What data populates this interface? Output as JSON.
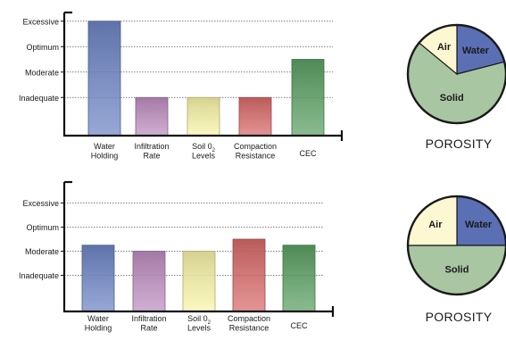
{
  "chart_data": [
    {
      "type": "bar",
      "title": "",
      "xlabel": "",
      "ylabel": "",
      "y_levels": [
        "Inadequate",
        "Moderate",
        "Optimum",
        "Excessive"
      ],
      "ylim": [
        0,
        5
      ],
      "grid": "dotted horizontal",
      "categories": [
        {
          "line1": "Water",
          "line2": "Holding"
        },
        {
          "line1": "Infiltration",
          "line2": "Rate"
        },
        {
          "line1": "Soil 0",
          "sub": "2",
          "line2": "Levels"
        },
        {
          "line1": "Compaction",
          "line2": "Resistance"
        },
        {
          "line1": "CEC",
          "line2": ""
        }
      ],
      "values": [
        4.5,
        1.5,
        1.5,
        1.5,
        3.0
      ],
      "colors": [
        "#6f86c6",
        "#bd8ec0",
        "#f8f4a8",
        "#d86a6a",
        "#5ca064"
      ],
      "pie": {
        "type": "pie",
        "caption": "POROSITY",
        "slices": [
          {
            "label": "Water",
            "fraction": 0.21,
            "color": "#5b6fb5"
          },
          {
            "label": "Solid",
            "fraction": 0.65,
            "color": "#a9c6a3"
          },
          {
            "label": "Air",
            "fraction": 0.14,
            "color": "#fdf8d2"
          }
        ]
      }
    },
    {
      "type": "bar",
      "title": "",
      "xlabel": "",
      "ylabel": "",
      "y_levels": [
        "Inadequate",
        "Moderate",
        "Optimum",
        "Excessive"
      ],
      "ylim": [
        0,
        5
      ],
      "grid": "dotted horizontal",
      "categories": [
        {
          "line1": "Water",
          "line2": "Holding"
        },
        {
          "line1": "Infiltration",
          "line2": "Rate"
        },
        {
          "line1": "Soil 0",
          "sub": "2",
          "line2": "Levels"
        },
        {
          "line1": "Compaction",
          "line2": "Resistance"
        },
        {
          "line1": "CEC",
          "line2": ""
        }
      ],
      "values": [
        2.75,
        2.5,
        2.5,
        3.0,
        2.75
      ],
      "colors": [
        "#6f86c6",
        "#bd8ec0",
        "#f8f4a8",
        "#d86a6a",
        "#5ca064"
      ],
      "pie": {
        "type": "pie",
        "caption": "POROSITY",
        "slices": [
          {
            "label": "Water",
            "fraction": 0.25,
            "color": "#5b6fb5"
          },
          {
            "label": "Solid",
            "fraction": 0.5,
            "color": "#a9c6a3"
          },
          {
            "label": "Air",
            "fraction": 0.25,
            "color": "#fdf8d2"
          }
        ]
      }
    }
  ]
}
